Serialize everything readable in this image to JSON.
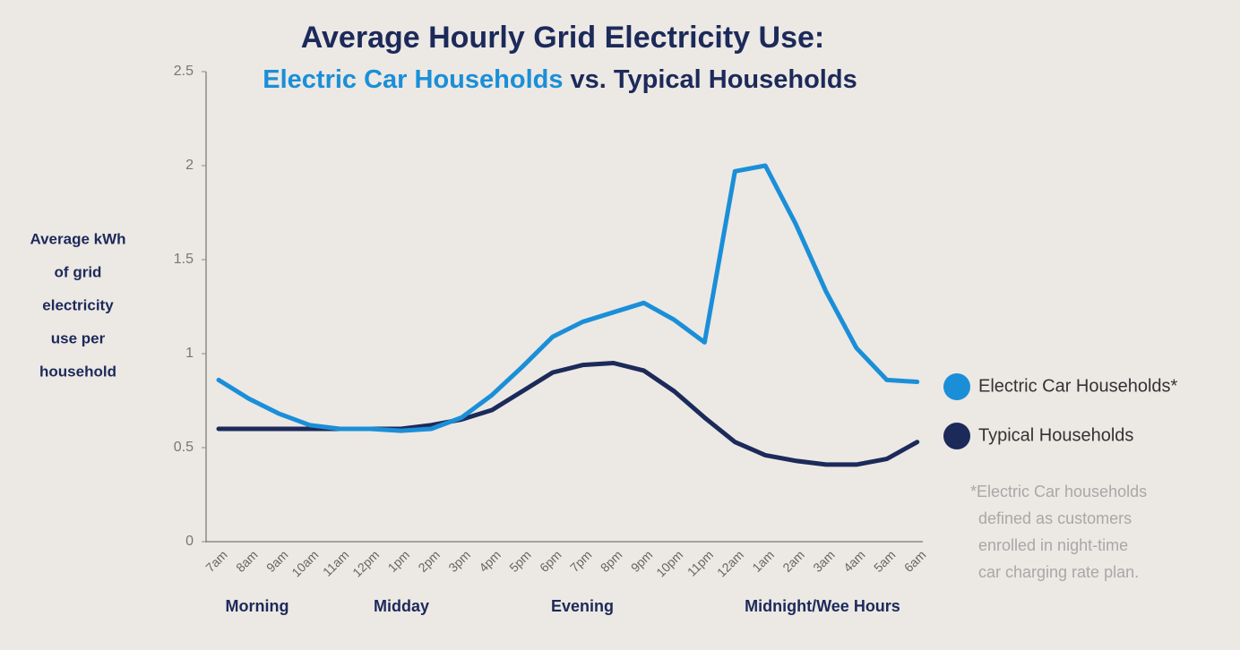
{
  "chart_data": {
    "type": "line",
    "title": "Average Hourly Grid Electricity Use:",
    "subtitle": [
      "Electric Car Households",
      "vs. Typical Households"
    ],
    "y_label": [
      "Average kWh",
      "of grid",
      "electricity",
      "use per",
      "household"
    ],
    "categories": [
      "7am",
      "8am",
      "9am",
      "10am",
      "11am",
      "12pm",
      "1pm",
      "2pm",
      "3pm",
      "4pm",
      "5pm",
      "6pm",
      "7pm",
      "8pm",
      "9pm",
      "10pm",
      "11pm",
      "12am",
      "1am",
      "2am",
      "3am",
      "4am",
      "5am",
      "6am"
    ],
    "periods": [
      "Morning",
      "Midday",
      "Evening",
      "Midnight/Wee Hours"
    ],
    "series": [
      {
        "name": "Electric Car Households*",
        "color": "#1a8fd8",
        "values": [
          0.86,
          0.76,
          0.68,
          0.62,
          0.6,
          0.6,
          0.59,
          0.6,
          0.66,
          0.78,
          0.93,
          1.09,
          1.17,
          1.22,
          1.27,
          1.18,
          1.06,
          1.97,
          2.0,
          1.69,
          1.33,
          1.03,
          0.86,
          0.85
        ]
      },
      {
        "name": "Typical Households",
        "color": "#1c2a5a",
        "values": [
          0.6,
          0.6,
          0.6,
          0.6,
          0.6,
          0.6,
          0.6,
          0.62,
          0.65,
          0.7,
          0.8,
          0.9,
          0.94,
          0.95,
          0.91,
          0.8,
          0.66,
          0.53,
          0.46,
          0.43,
          0.41,
          0.41,
          0.44,
          0.53
        ]
      }
    ],
    "ylim": [
      0,
      2.5
    ],
    "yticks": [
      0,
      0.5,
      1,
      1.5,
      2,
      2.5
    ],
    "grid": false,
    "footnote": [
      "*Electric Car households",
      "defined as customers",
      "enrolled in night-time",
      "car charging rate plan."
    ]
  }
}
